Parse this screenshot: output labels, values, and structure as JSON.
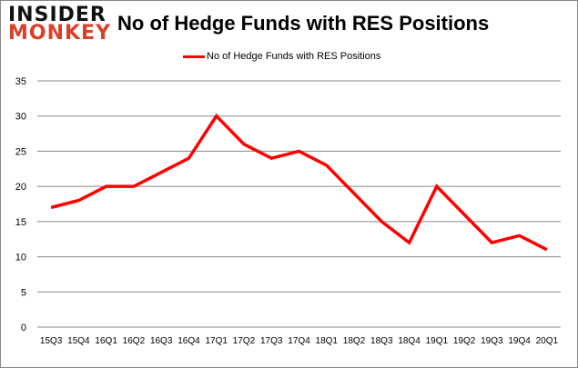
{
  "logo": {
    "line1": "INSIDER",
    "line2": "MONKEY"
  },
  "chart_data": {
    "type": "line",
    "title": "No of Hedge Funds with RES Positions",
    "categories": [
      "15Q3",
      "15Q4",
      "16Q1",
      "16Q2",
      "16Q3",
      "16Q4",
      "17Q1",
      "17Q2",
      "17Q3",
      "17Q4",
      "18Q1",
      "18Q2",
      "18Q3",
      "18Q4",
      "19Q1",
      "19Q2",
      "19Q3",
      "19Q4",
      "20Q1"
    ],
    "series": [
      {
        "name": "No of Hedge Funds with RES Positions",
        "color": "#ff0000",
        "values": [
          17,
          18,
          20,
          20,
          22,
          24,
          30,
          26,
          24,
          25,
          23,
          19,
          15,
          12,
          20,
          16,
          12,
          13,
          11
        ]
      }
    ],
    "yticks": [
      0,
      5,
      10,
      15,
      20,
      25,
      30,
      35
    ],
    "ylim": [
      0,
      35
    ],
    "grid": true,
    "legend": "top-center"
  }
}
